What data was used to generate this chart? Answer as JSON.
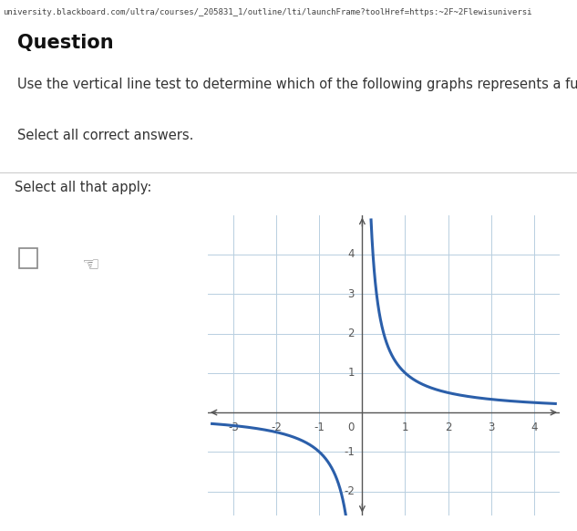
{
  "title_line1": "Question",
  "question_text": "Use the vertical line test to determine which of the following graphs represents a function.",
  "select_text": "Select all correct answers.",
  "select_apply": "Select all that apply:",
  "bg_color": "#ffffff",
  "panel_bg": "#e8f0f5",
  "url_text": "university.blackboard.com/ultra/courses/_205831_1/outline/lti/launchFrame?toolHref=https:~2F~2Flewisuniversi",
  "curve_color": "#2b5faa",
  "grid_color": "#b8cfe0",
  "axis_color": "#555555",
  "tick_color": "#555555",
  "xlim": [
    -3.6,
    4.6
  ],
  "ylim": [
    -2.6,
    5.0
  ],
  "xticks": [
    -3,
    -2,
    -1,
    0,
    1,
    2,
    3,
    4
  ],
  "yticks": [
    -2,
    -1,
    0,
    1,
    2,
    3,
    4
  ],
  "separator_color": "#cccccc",
  "apply_bg": "#f5f5f5",
  "url_bg": "#e0e0e0",
  "text_section_bg": "#ffffff"
}
